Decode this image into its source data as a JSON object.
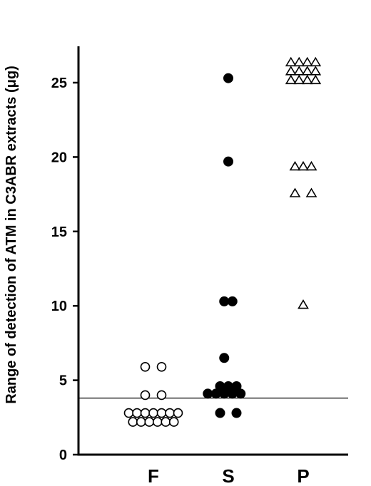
{
  "chart_data": {
    "type": "scatter",
    "ylabel": "Range of detection of ATM in C3ABR extracts (μg)",
    "xlabel": "",
    "ylim": [
      0,
      28
    ],
    "yticks": [
      0,
      5,
      10,
      15,
      20,
      25
    ],
    "categories": [
      "F",
      "S",
      "P"
    ],
    "threshold": 3.8,
    "series": [
      {
        "category": "F",
        "marker": "open-circle",
        "points": [
          {
            "dx": -1,
            "y": 5.9
          },
          {
            "dx": 1,
            "y": 5.9
          },
          {
            "dx": -1,
            "y": 4.0
          },
          {
            "dx": 1,
            "y": 4.0
          },
          {
            "dx": -3,
            "y": 2.8
          },
          {
            "dx": -2,
            "y": 2.8
          },
          {
            "dx": -1,
            "y": 2.8
          },
          {
            "dx": 0,
            "y": 2.8
          },
          {
            "dx": 1,
            "y": 2.8
          },
          {
            "dx": 2,
            "y": 2.8
          },
          {
            "dx": 3,
            "y": 2.8
          },
          {
            "dx": -2.5,
            "y": 2.2
          },
          {
            "dx": -1.5,
            "y": 2.2
          },
          {
            "dx": -0.5,
            "y": 2.2
          },
          {
            "dx": 0.5,
            "y": 2.2
          },
          {
            "dx": 1.5,
            "y": 2.2
          },
          {
            "dx": 2.5,
            "y": 2.2
          }
        ]
      },
      {
        "category": "S",
        "marker": "filled-circle",
        "points": [
          {
            "dx": 0,
            "y": 25.3
          },
          {
            "dx": 0,
            "y": 19.7
          },
          {
            "dx": -0.5,
            "y": 10.3
          },
          {
            "dx": 0.5,
            "y": 10.3
          },
          {
            "dx": -0.5,
            "y": 6.5
          },
          {
            "dx": -1,
            "y": 4.6
          },
          {
            "dx": 0,
            "y": 4.6
          },
          {
            "dx": 1,
            "y": 4.6
          },
          {
            "dx": -2.5,
            "y": 4.1
          },
          {
            "dx": -1.5,
            "y": 4.1
          },
          {
            "dx": -0.5,
            "y": 4.1
          },
          {
            "dx": 0.5,
            "y": 4.1
          },
          {
            "dx": 1.5,
            "y": 4.1
          },
          {
            "dx": -1,
            "y": 2.8
          },
          {
            "dx": 1,
            "y": 2.8
          }
        ]
      },
      {
        "category": "P",
        "marker": "open-triangle",
        "points": [
          {
            "dx": -1.5,
            "y": 26.4
          },
          {
            "dx": -0.5,
            "y": 26.4
          },
          {
            "dx": 0.5,
            "y": 26.4
          },
          {
            "dx": 1.5,
            "y": 26.4
          },
          {
            "dx": -1.5,
            "y": 25.8
          },
          {
            "dx": -0.5,
            "y": 25.8
          },
          {
            "dx": 0.5,
            "y": 25.8
          },
          {
            "dx": 1.5,
            "y": 25.8
          },
          {
            "dx": -1.5,
            "y": 25.2
          },
          {
            "dx": -0.5,
            "y": 25.2
          },
          {
            "dx": 0.5,
            "y": 25.2
          },
          {
            "dx": 1.5,
            "y": 25.2
          },
          {
            "dx": -1,
            "y": 19.4
          },
          {
            "dx": 0,
            "y": 19.4
          },
          {
            "dx": 1,
            "y": 19.4
          },
          {
            "dx": -1,
            "y": 17.6
          },
          {
            "dx": 1,
            "y": 17.6
          },
          {
            "dx": 0,
            "y": 10.1
          }
        ]
      }
    ]
  }
}
